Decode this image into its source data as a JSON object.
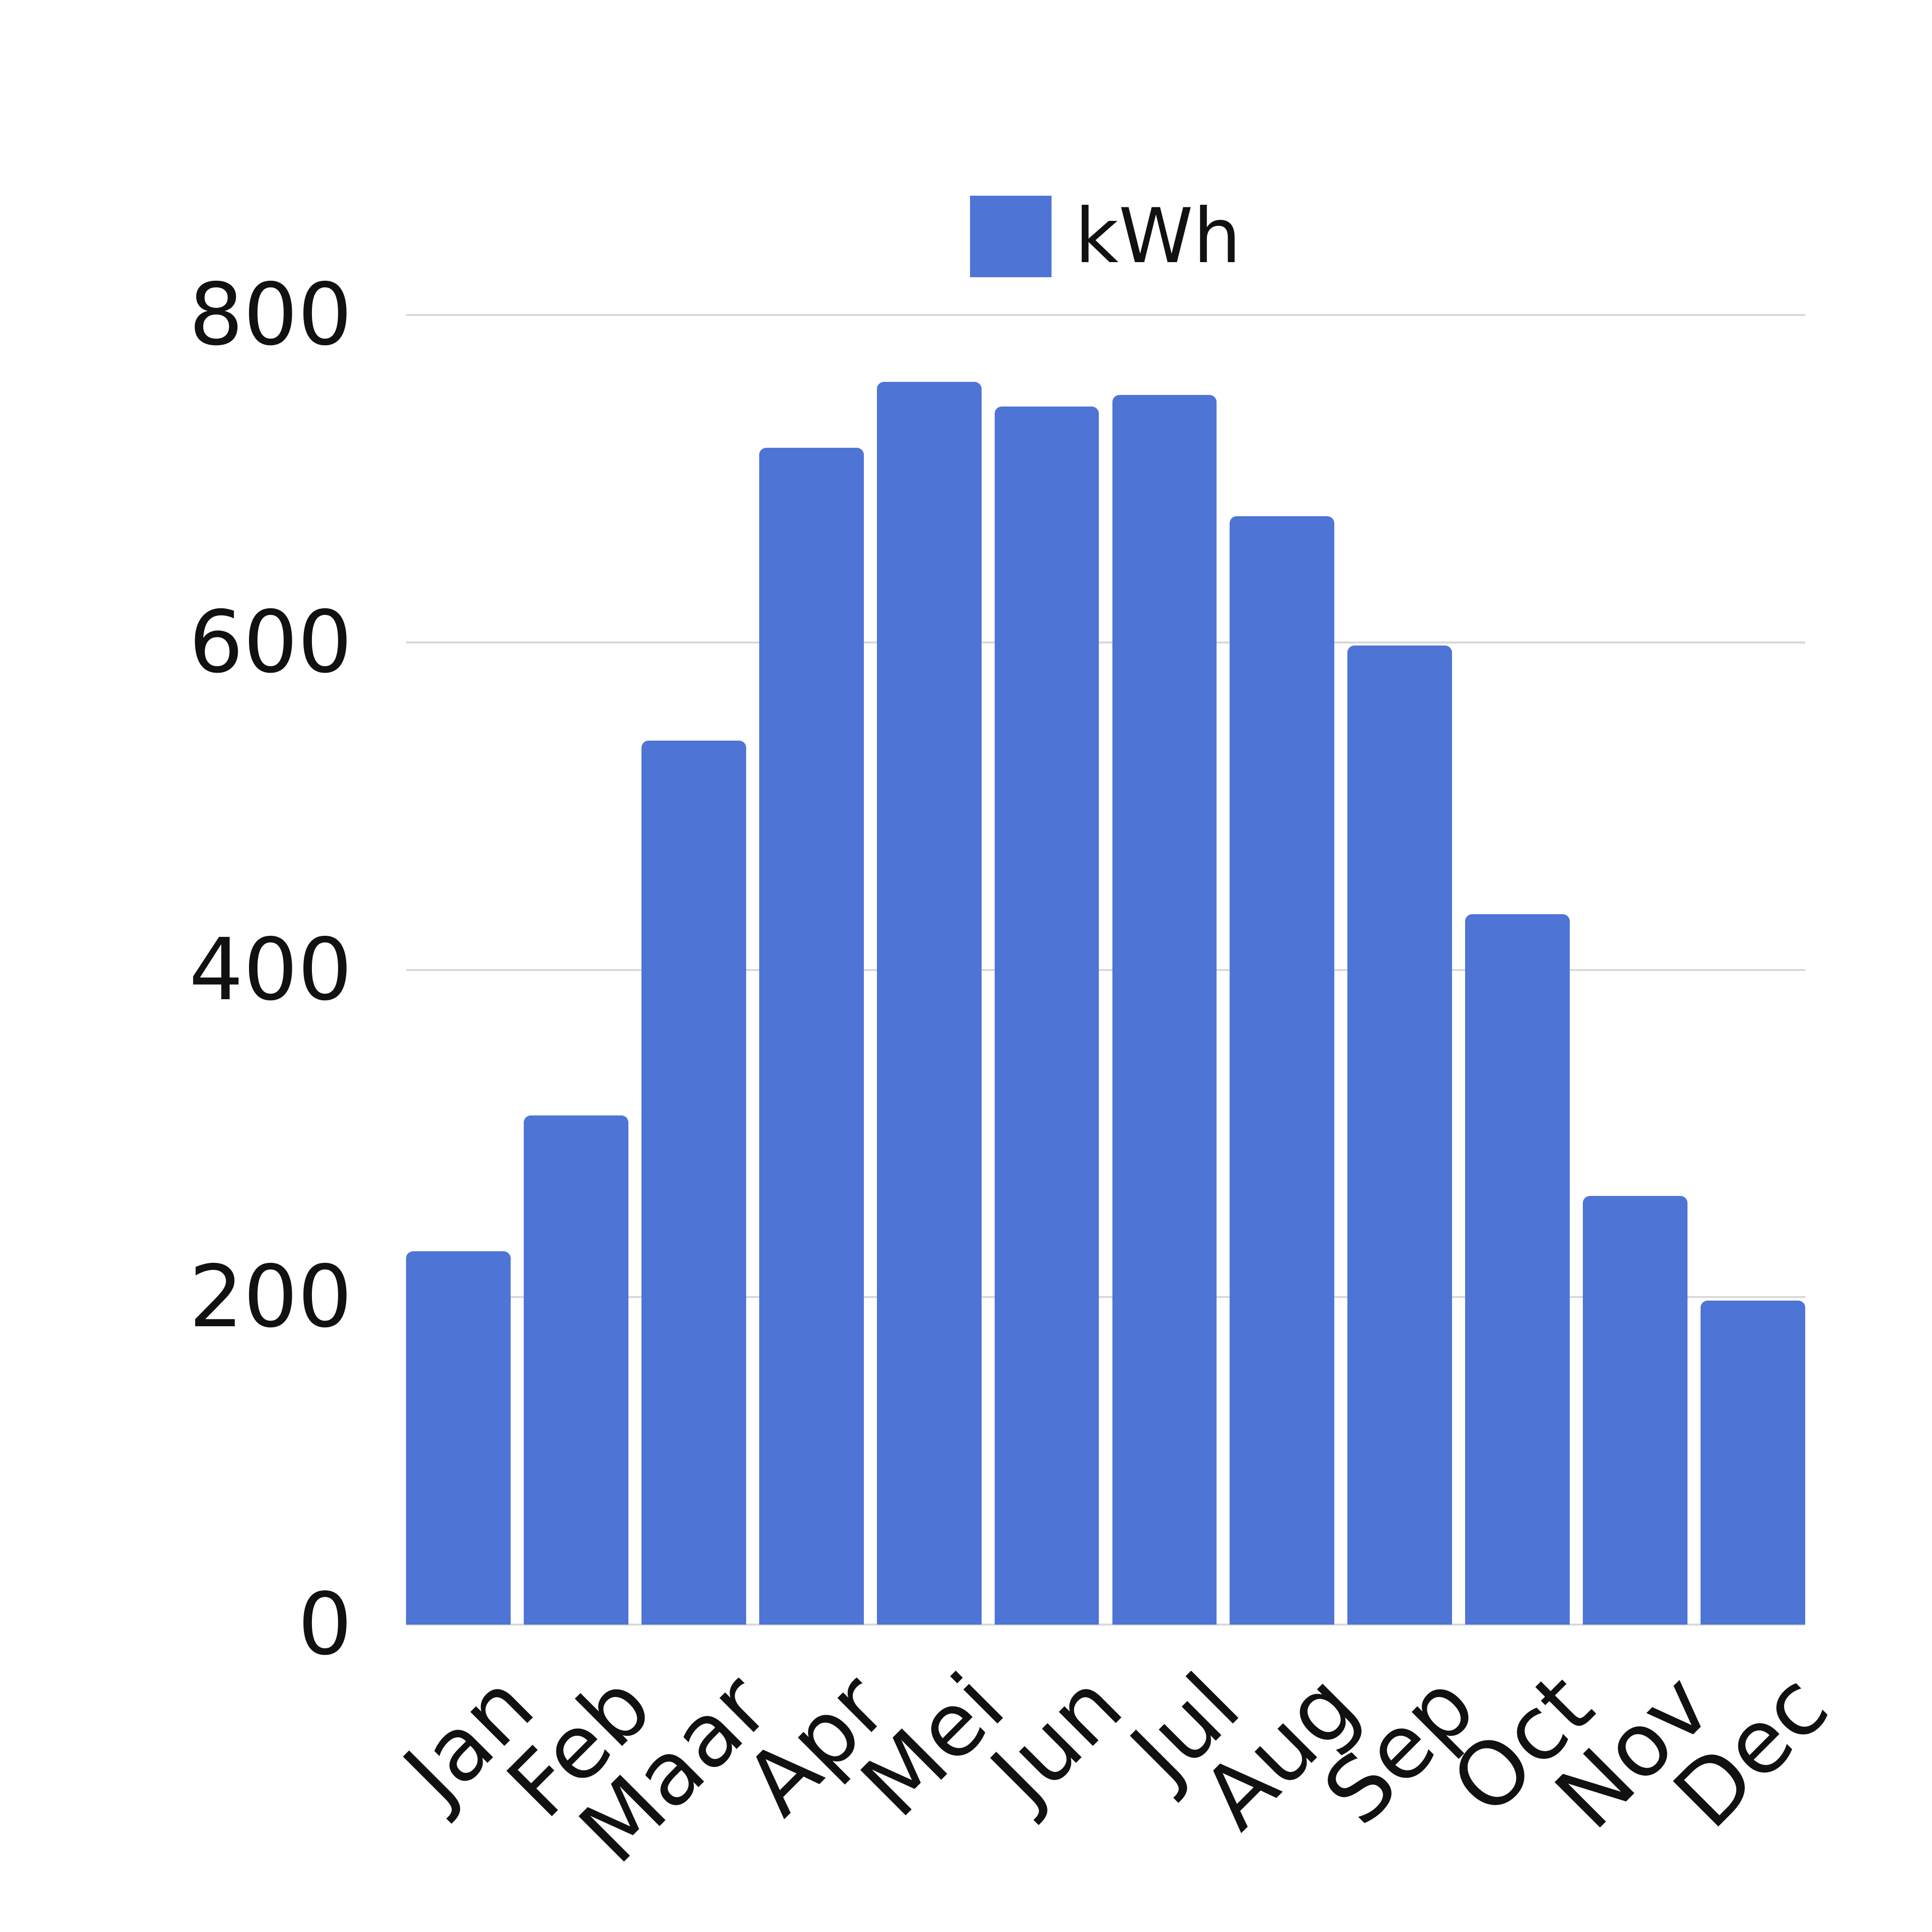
{
  "legend": {
    "label": "kWh"
  },
  "chart_data": {
    "type": "bar",
    "title": "",
    "xlabel": "",
    "ylabel": "",
    "series_name": "kWh",
    "categories": [
      "Jan",
      "Feb",
      "Maar",
      "Apr",
      "Mei",
      "Jun",
      "Jul",
      "Aug",
      "Sep",
      "Oct",
      "Nov",
      "Dec"
    ],
    "values": [
      228,
      311,
      540,
      719,
      759,
      744,
      751,
      677,
      598,
      434,
      262,
      198
    ],
    "ylim": [
      0,
      800
    ],
    "yticks": [
      0,
      200,
      400,
      600,
      800
    ],
    "ytick_labels": [
      "0",
      "200",
      "400",
      "600",
      "800"
    ],
    "grid": true,
    "legend_position": "top-center",
    "bar_color": "#4e74d6",
    "gridline_color": "#d9d9d9",
    "text_color": "#111111",
    "background_color": "#ffffff"
  }
}
